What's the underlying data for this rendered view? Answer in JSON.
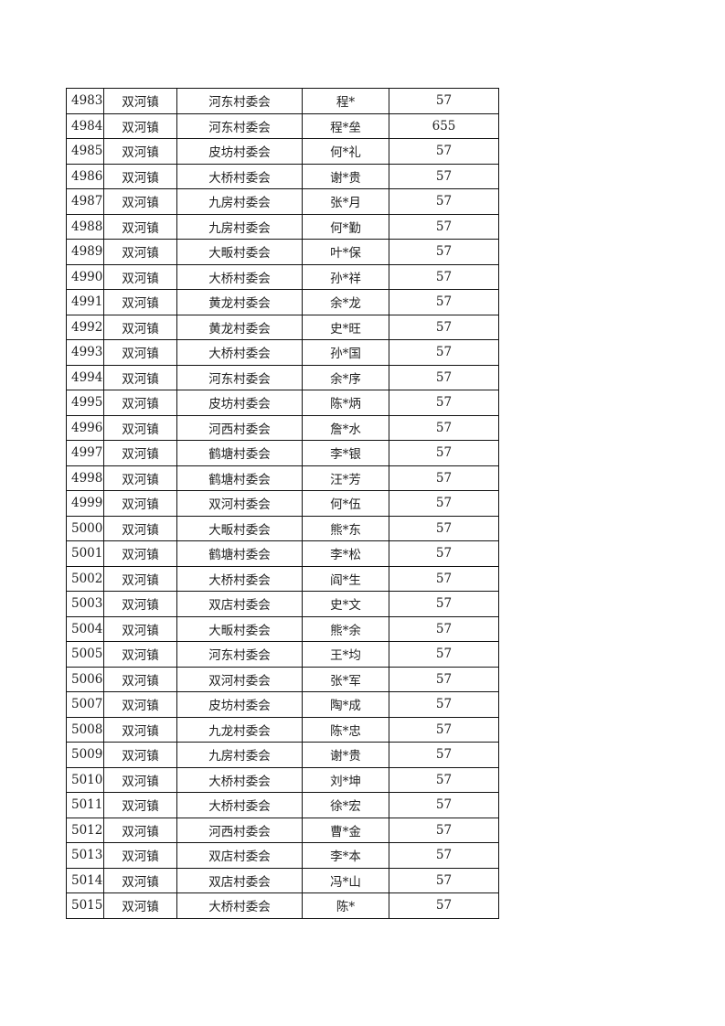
{
  "rows": [
    {
      "id": "4983",
      "town": "双河镇",
      "village": "河东村委会",
      "name": "程*",
      "amount": "57"
    },
    {
      "id": "4984",
      "town": "双河镇",
      "village": "河东村委会",
      "name": "程*垒",
      "amount": "655"
    },
    {
      "id": "4985",
      "town": "双河镇",
      "village": "皮坊村委会",
      "name": "何*礼",
      "amount": "57"
    },
    {
      "id": "4986",
      "town": "双河镇",
      "village": "大桥村委会",
      "name": "谢*贵",
      "amount": "57"
    },
    {
      "id": "4987",
      "town": "双河镇",
      "village": "九房村委会",
      "name": "张*月",
      "amount": "57"
    },
    {
      "id": "4988",
      "town": "双河镇",
      "village": "九房村委会",
      "name": "何*勤",
      "amount": "57"
    },
    {
      "id": "4989",
      "town": "双河镇",
      "village": "大畈村委会",
      "name": "叶*保",
      "amount": "57"
    },
    {
      "id": "4990",
      "town": "双河镇",
      "village": "大桥村委会",
      "name": "孙*祥",
      "amount": "57"
    },
    {
      "id": "4991",
      "town": "双河镇",
      "village": "黄龙村委会",
      "name": "余*龙",
      "amount": "57"
    },
    {
      "id": "4992",
      "town": "双河镇",
      "village": "黄龙村委会",
      "name": "史*旺",
      "amount": "57"
    },
    {
      "id": "4993",
      "town": "双河镇",
      "village": "大桥村委会",
      "name": "孙*国",
      "amount": "57"
    },
    {
      "id": "4994",
      "town": "双河镇",
      "village": "河东村委会",
      "name": "余*序",
      "amount": "57"
    },
    {
      "id": "4995",
      "town": "双河镇",
      "village": "皮坊村委会",
      "name": "陈*炳",
      "amount": "57"
    },
    {
      "id": "4996",
      "town": "双河镇",
      "village": "河西村委会",
      "name": "詹*水",
      "amount": "57"
    },
    {
      "id": "4997",
      "town": "双河镇",
      "village": "鹤塘村委会",
      "name": "李*银",
      "amount": "57"
    },
    {
      "id": "4998",
      "town": "双河镇",
      "village": "鹤塘村委会",
      "name": "汪*芳",
      "amount": "57"
    },
    {
      "id": "4999",
      "town": "双河镇",
      "village": "双河村委会",
      "name": "何*伍",
      "amount": "57"
    },
    {
      "id": "5000",
      "town": "双河镇",
      "village": "大畈村委会",
      "name": "熊*东",
      "amount": "57"
    },
    {
      "id": "5001",
      "town": "双河镇",
      "village": "鹤塘村委会",
      "name": "李*松",
      "amount": "57"
    },
    {
      "id": "5002",
      "town": "双河镇",
      "village": "大桥村委会",
      "name": "阎*生",
      "amount": "57"
    },
    {
      "id": "5003",
      "town": "双河镇",
      "village": "双店村委会",
      "name": "史*文",
      "amount": "57"
    },
    {
      "id": "5004",
      "town": "双河镇",
      "village": "大畈村委会",
      "name": "熊*余",
      "amount": "57"
    },
    {
      "id": "5005",
      "town": "双河镇",
      "village": "河东村委会",
      "name": "王*均",
      "amount": "57"
    },
    {
      "id": "5006",
      "town": "双河镇",
      "village": "双河村委会",
      "name": "张*军",
      "amount": "57"
    },
    {
      "id": "5007",
      "town": "双河镇",
      "village": "皮坊村委会",
      "name": "陶*成",
      "amount": "57"
    },
    {
      "id": "5008",
      "town": "双河镇",
      "village": "九龙村委会",
      "name": "陈*忠",
      "amount": "57"
    },
    {
      "id": "5009",
      "town": "双河镇",
      "village": "九房村委会",
      "name": "谢*贵",
      "amount": "57"
    },
    {
      "id": "5010",
      "town": "双河镇",
      "village": "大桥村委会",
      "name": "刘*坤",
      "amount": "57"
    },
    {
      "id": "5011",
      "town": "双河镇",
      "village": "大桥村委会",
      "name": "徐*宏",
      "amount": "57"
    },
    {
      "id": "5012",
      "town": "双河镇",
      "village": "河西村委会",
      "name": "曹*金",
      "amount": "57"
    },
    {
      "id": "5013",
      "town": "双河镇",
      "village": "双店村委会",
      "name": "李*本",
      "amount": "57"
    },
    {
      "id": "5014",
      "town": "双河镇",
      "village": "双店村委会",
      "name": "冯*山",
      "amount": "57"
    },
    {
      "id": "5015",
      "town": "双河镇",
      "village": "大桥村委会",
      "name": "陈*",
      "amount": "57"
    }
  ]
}
